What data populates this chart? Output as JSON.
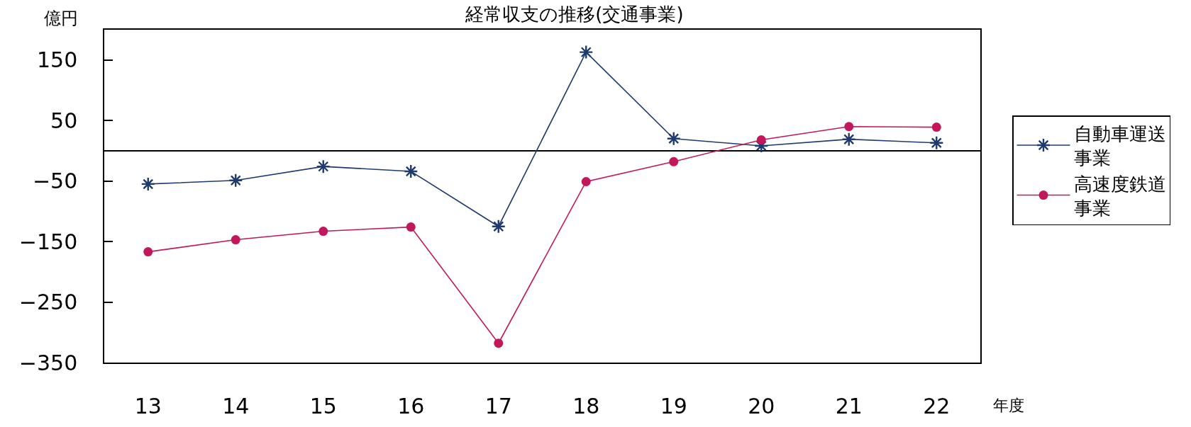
{
  "chart_data": {
    "type": "line",
    "title": "経常収支の推移(交通事業)",
    "xlabel": "年度",
    "ylabel": "億円",
    "categories": [
      "13",
      "14",
      "15",
      "16",
      "17",
      "18",
      "19",
      "20",
      "21",
      "22"
    ],
    "series": [
      {
        "name": "自動車運送事業",
        "color": "#1f3b6e",
        "marker": "cross",
        "values": [
          -55,
          -49,
          -26,
          -34,
          -125,
          163,
          20,
          8,
          19,
          13
        ]
      },
      {
        "name": "高速度鉄道事業",
        "color": "#c2185b",
        "marker": "circle",
        "values": [
          -167,
          -147,
          -133,
          -126,
          -318,
          -51,
          -18,
          18,
          40,
          39
        ]
      }
    ],
    "ylim": [
      -350,
      200
    ],
    "yticks": [
      -350,
      -250,
      -150,
      -50,
      50,
      150
    ],
    "legend": "right",
    "line_style": "solid"
  }
}
